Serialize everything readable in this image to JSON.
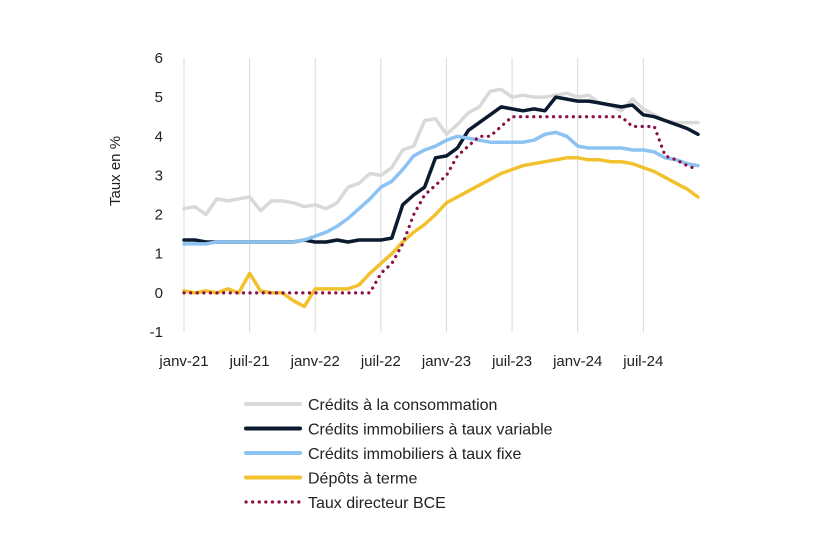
{
  "chart_data": {
    "type": "line",
    "title": "",
    "xlabel": "",
    "ylabel": "Taux en %",
    "ylim": [
      -1,
      6
    ],
    "yticks": [
      "-1",
      "0",
      "1",
      "2",
      "3",
      "4",
      "5",
      "6"
    ],
    "xticks": [
      {
        "label": "janv-21",
        "index": 0
      },
      {
        "label": "juil-21",
        "index": 6
      },
      {
        "label": "janv-22",
        "index": 12
      },
      {
        "label": "juil-22",
        "index": 18
      },
      {
        "label": "janv-23",
        "index": 24
      },
      {
        "label": "juil-23",
        "index": 30
      },
      {
        "label": "janv-24",
        "index": 36
      },
      {
        "label": "juil-24",
        "index": 42
      }
    ],
    "n_points": 48,
    "grid": "vertical",
    "legend": "bottom",
    "series": [
      {
        "name": "Crédits à la consommation",
        "color": "#d9d9d9",
        "style": "solid",
        "values": [
          2.15,
          2.2,
          2.0,
          2.4,
          2.35,
          2.4,
          2.45,
          2.1,
          2.35,
          2.35,
          2.3,
          2.2,
          2.25,
          2.15,
          2.3,
          2.7,
          2.8,
          3.05,
          3.0,
          3.2,
          3.65,
          3.75,
          4.4,
          4.45,
          4.05,
          4.3,
          4.6,
          4.75,
          5.15,
          5.2,
          5.0,
          5.05,
          5.0,
          5.0,
          5.05,
          5.1,
          5.0,
          5.05,
          4.85,
          4.8,
          4.65,
          4.95,
          4.7,
          4.55,
          4.4,
          4.35,
          4.35,
          4.35
        ]
      },
      {
        "name": "Crédits immobiliers à taux variable",
        "color": "#0b1a2e",
        "style": "solid",
        "values": [
          1.35,
          1.35,
          1.3,
          1.3,
          1.3,
          1.3,
          1.3,
          1.3,
          1.3,
          1.3,
          1.3,
          1.35,
          1.3,
          1.3,
          1.35,
          1.3,
          1.35,
          1.35,
          1.35,
          1.4,
          2.25,
          2.5,
          2.7,
          3.45,
          3.5,
          3.7,
          4.15,
          4.35,
          4.55,
          4.75,
          4.7,
          4.65,
          4.7,
          4.65,
          5.0,
          4.95,
          4.9,
          4.9,
          4.85,
          4.8,
          4.75,
          4.8,
          4.55,
          4.5,
          4.4,
          4.3,
          4.2,
          4.05
        ]
      },
      {
        "name": "Crédits immobiliers à taux fixe",
        "color": "#8cc3f2",
        "style": "solid",
        "values": [
          1.25,
          1.25,
          1.25,
          1.3,
          1.3,
          1.3,
          1.3,
          1.3,
          1.3,
          1.3,
          1.3,
          1.35,
          1.45,
          1.55,
          1.7,
          1.9,
          2.15,
          2.4,
          2.7,
          2.85,
          3.15,
          3.5,
          3.65,
          3.75,
          3.9,
          4.0,
          3.95,
          3.9,
          3.85,
          3.85,
          3.85,
          3.85,
          3.9,
          4.05,
          4.1,
          4.0,
          3.75,
          3.7,
          3.7,
          3.7,
          3.7,
          3.65,
          3.65,
          3.6,
          3.45,
          3.4,
          3.3,
          3.25
        ]
      },
      {
        "name": "Dépôts à terme",
        "color": "#f2c12e",
        "style": "solid",
        "values": [
          0.05,
          0.0,
          0.05,
          0.0,
          0.1,
          0.0,
          0.5,
          0.05,
          0.0,
          0.0,
          -0.2,
          -0.35,
          0.1,
          0.1,
          0.1,
          0.1,
          0.2,
          0.5,
          0.75,
          1.0,
          1.3,
          1.55,
          1.75,
          2.0,
          2.3,
          2.45,
          2.6,
          2.75,
          2.9,
          3.05,
          3.15,
          3.25,
          3.3,
          3.35,
          3.4,
          3.45,
          3.45,
          3.4,
          3.4,
          3.35,
          3.35,
          3.3,
          3.2,
          3.1,
          2.95,
          2.8,
          2.65,
          2.45
        ]
      },
      {
        "name": "Taux directeur BCE",
        "color": "#8b1045",
        "style": "dotted",
        "values": [
          0,
          0,
          0,
          0,
          0,
          0,
          0,
          0,
          0,
          0,
          0,
          0,
          0,
          0,
          0,
          0,
          0,
          0,
          0.5,
          0.75,
          1.25,
          2.0,
          2.5,
          2.75,
          3.0,
          3.5,
          3.75,
          4.0,
          4.0,
          4.25,
          4.5,
          4.5,
          4.5,
          4.5,
          4.5,
          4.5,
          4.5,
          4.5,
          4.5,
          4.5,
          4.5,
          4.25,
          4.25,
          4.25,
          3.5,
          3.4,
          3.25,
          3.15
        ]
      }
    ]
  }
}
